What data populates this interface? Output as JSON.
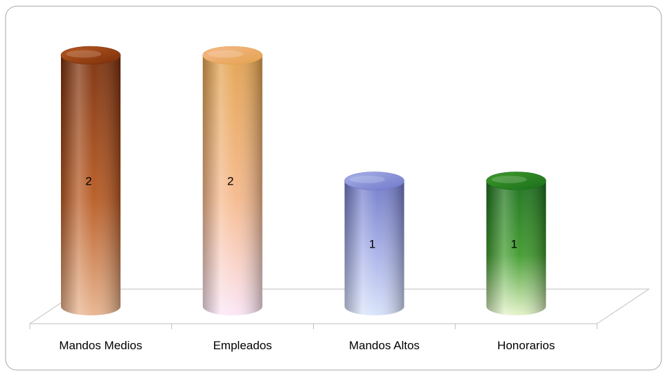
{
  "chart_data": {
    "type": "bar",
    "style": "3d-cylinder",
    "categories": [
      "Mandos Medios",
      "Empleados",
      "Mandos Altos",
      "Honorarios"
    ],
    "values": [
      2,
      2,
      1,
      1
    ],
    "data_labels": [
      "2",
      "2",
      "1",
      "1"
    ],
    "colors": [
      {
        "dark": "#7a2e0a",
        "mid": "#b85a22",
        "light": "#e8b48e"
      },
      {
        "dark": "#e3a24e",
        "mid": "#f6b98c",
        "light": "#fbe6f6"
      },
      {
        "dark": "#6f78c8",
        "mid": "#a9b2e8",
        "light": "#d8e2fb"
      },
      {
        "dark": "#1a6e1a",
        "mid": "#3f9a2c",
        "light": "#e4f3c8"
      }
    ],
    "ylim": [
      0,
      2
    ],
    "grid": false,
    "legend": "none",
    "title": "",
    "xlabel": "",
    "ylabel": ""
  }
}
